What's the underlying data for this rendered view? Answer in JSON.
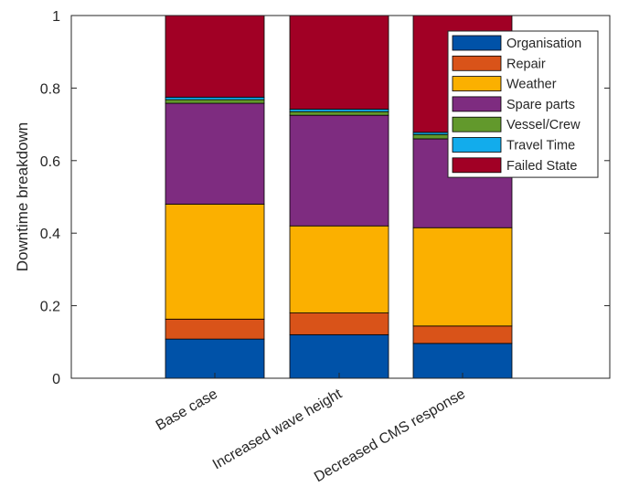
{
  "chart_data": {
    "type": "bar",
    "stacked": true,
    "title": "",
    "xlabel": "",
    "ylabel": "Downtime breakdown",
    "ylim": [
      0,
      1
    ],
    "yticks": [
      "0",
      "0.2",
      "0.4",
      "0.6",
      "0.8",
      "1"
    ],
    "categories": [
      "Base case",
      "Increased wave height",
      "Decreased CMS response"
    ],
    "grid": false,
    "legend_position": "top-right",
    "series": [
      {
        "name": "Organisation",
        "color": "#0052a8",
        "values": [
          0.108,
          0.12,
          0.096
        ]
      },
      {
        "name": "Repair",
        "color": "#d95319",
        "values": [
          0.055,
          0.06,
          0.048
        ]
      },
      {
        "name": "Weather",
        "color": "#fbb000",
        "values": [
          0.317,
          0.24,
          0.271
        ]
      },
      {
        "name": "Spare parts",
        "color": "#7e2c80",
        "values": [
          0.278,
          0.305,
          0.245
        ]
      },
      {
        "name": "Vessel/Crew",
        "color": "#62992c",
        "values": [
          0.01,
          0.01,
          0.012
        ]
      },
      {
        "name": "Travel Time",
        "color": "#12acec",
        "values": [
          0.007,
          0.007,
          0.006
        ]
      },
      {
        "name": "Failed State",
        "color": "#a10025",
        "values": [
          0.225,
          0.258,
          0.322
        ]
      }
    ]
  }
}
